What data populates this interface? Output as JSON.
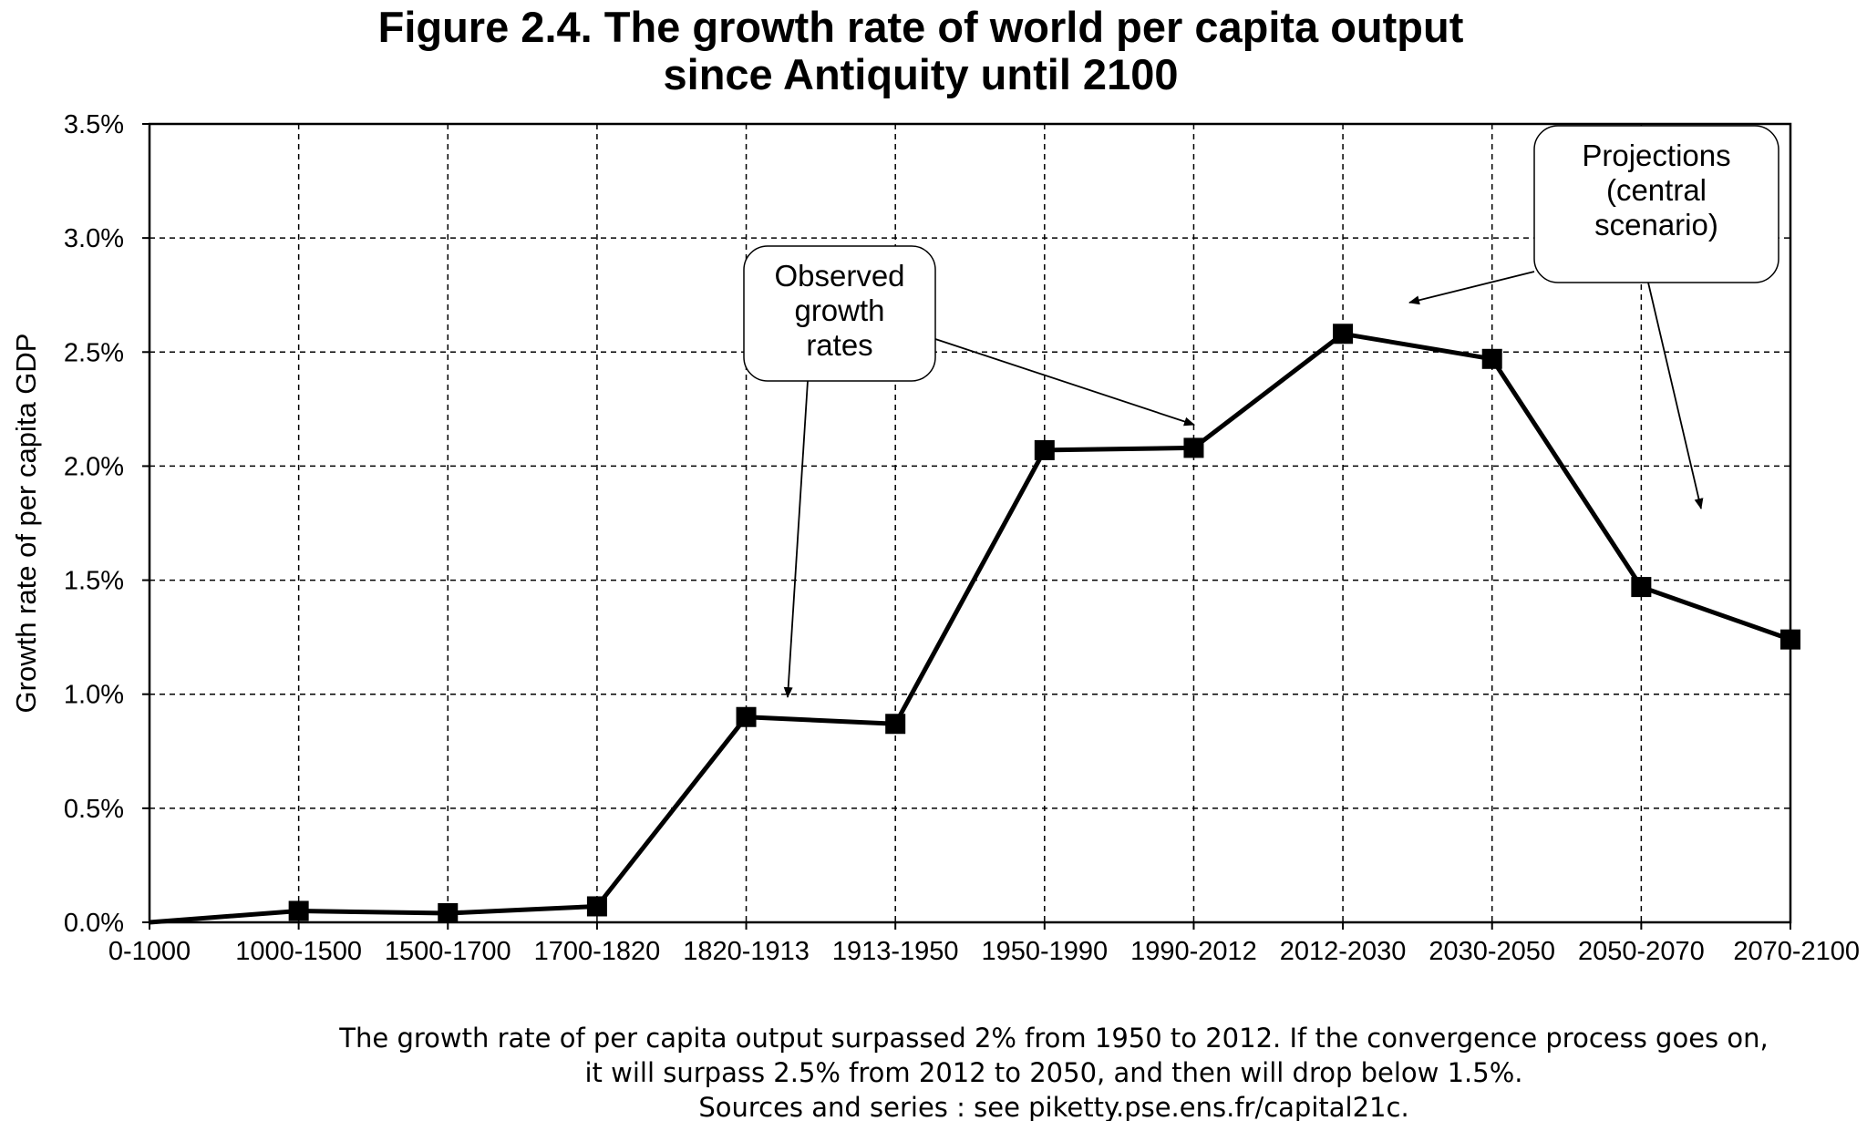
{
  "title": {
    "line1": "Figure 2.4. The growth rate of world per capita output",
    "line2": "since Antiquity until 2100"
  },
  "chart_data": {
    "type": "line",
    "ylabel": "Growth rate of per capita GDP",
    "ylim": [
      0,
      3.5
    ],
    "y_ticks": [
      "0.0%",
      "0.5%",
      "1.0%",
      "1.5%",
      "2.0%",
      "2.5%",
      "3.0%",
      "3.5%"
    ],
    "categories": [
      "0-1000",
      "1000-1500",
      "1500-1700",
      "1700-1820",
      "1820-1913",
      "1913-1950",
      "1950-1990",
      "1990-2012",
      "2012-2030",
      "2030-2050",
      "2050-2070",
      "2070-2100"
    ],
    "series": [
      {
        "values": [
          0.0,
          0.05,
          0.04,
          0.07,
          0.9,
          0.87,
          2.07,
          2.08,
          2.58,
          2.47,
          1.47,
          1.24
        ]
      }
    ],
    "grid": true,
    "annotations": [
      {
        "lines": [
          "Observed",
          "growth",
          "rates"
        ]
      },
      {
        "lines": [
          "Projections",
          "(central",
          "scenario)"
        ]
      }
    ]
  },
  "notes": {
    "line1": "The growth rate of per capita output surpassed 2% from 1950 to 2012. If the convergence process goes on,",
    "line2": "it will surpass 2.5% from 2012 to 2050, and then will drop below 1.5%.",
    "line3": "Sources and series : see piketty.pse.ens.fr/capital21c."
  }
}
